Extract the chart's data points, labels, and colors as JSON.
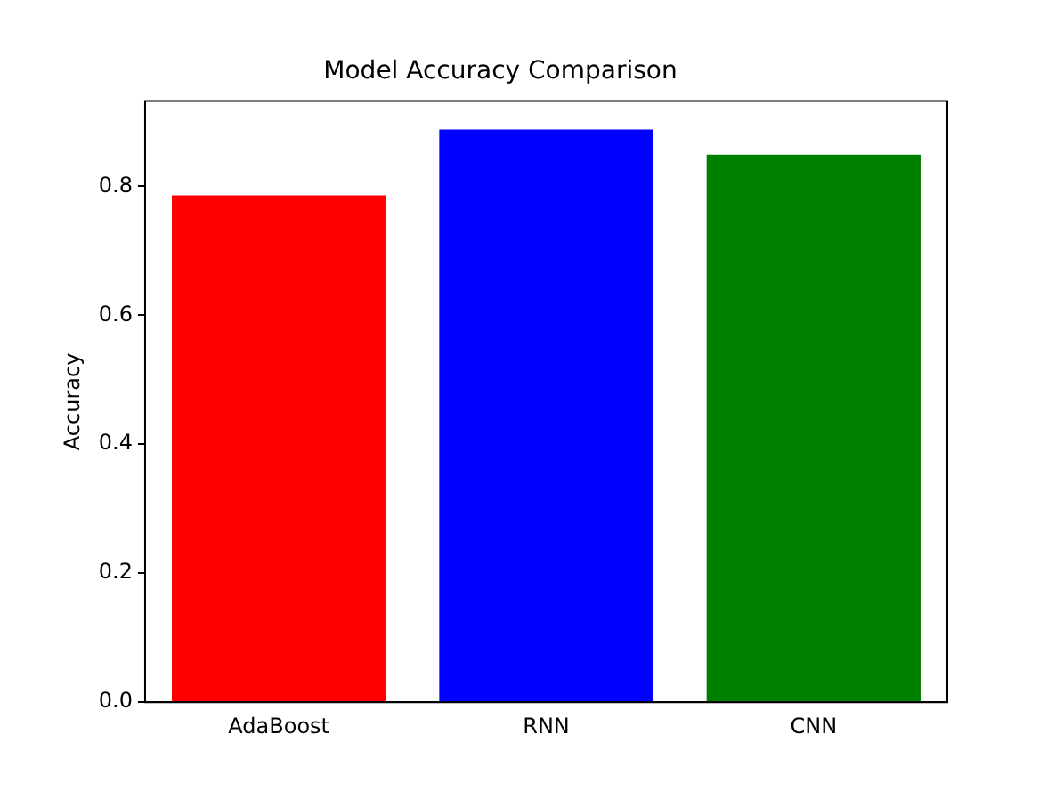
{
  "chart_data": {
    "type": "bar",
    "title": "Model Accuracy Comparison",
    "ylabel": "Accuracy",
    "categories": [
      "AdaBoost",
      "RNN",
      "CNN"
    ],
    "values": [
      0.786,
      0.888,
      0.849
    ],
    "colors": [
      "#ff0000",
      "#0000ff",
      "#008000"
    ],
    "ylim": [
      0,
      0.932
    ],
    "yticks": [
      {
        "value": 0,
        "label": "0.0"
      },
      {
        "value": 0.2,
        "label": "0.2"
      },
      {
        "value": 0.4,
        "label": "0.4"
      },
      {
        "value": 0.6,
        "label": "0.6"
      },
      {
        "value": 0.8,
        "label": "0.8"
      }
    ],
    "grid": false
  }
}
